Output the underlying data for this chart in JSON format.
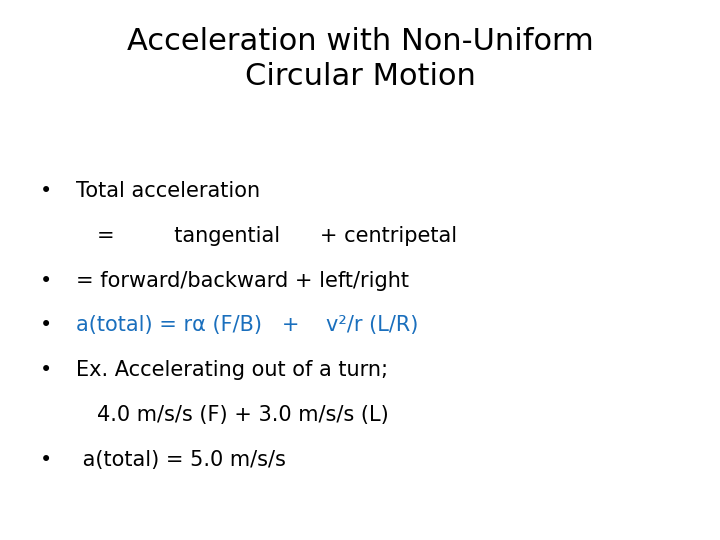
{
  "title_line1": "Acceleration with Non-Uniform",
  "title_line2": "Circular Motion",
  "title_fontsize": 22,
  "title_color": "#000000",
  "background_color": "#ffffff",
  "bullet_color": "#000000",
  "highlight_color": "#1a6fbd",
  "bullet_fontsize": 15,
  "bullets": [
    {
      "lines": [
        {
          "text": "Total acceleration",
          "color": "#000000",
          "indent": false
        },
        {
          "text": "=         tangential      + centripetal",
          "color": "#000000",
          "indent": true
        }
      ]
    },
    {
      "lines": [
        {
          "text": "= forward/backward + left/right",
          "color": "#000000",
          "indent": false
        }
      ]
    },
    {
      "lines": [
        {
          "text": "a(total) = rα (F/B)   +    v²/r (L/R)",
          "color": "#1a6fbd",
          "indent": false
        }
      ]
    },
    {
      "lines": [
        {
          "text": "Ex. Accelerating out of a turn;",
          "color": "#000000",
          "indent": false
        },
        {
          "text": "4.0 m/s/s (F) + 3.0 m/s/s (L)",
          "color": "#000000",
          "indent": true
        }
      ]
    },
    {
      "lines": [
        {
          "text": " a(total) = 5.0 m/s/s",
          "color": "#000000",
          "indent": false
        }
      ]
    }
  ]
}
